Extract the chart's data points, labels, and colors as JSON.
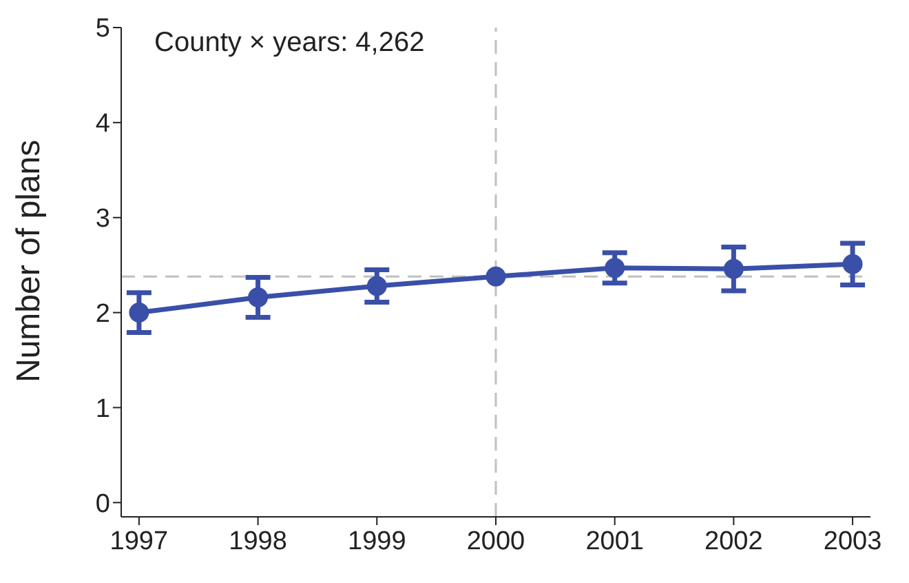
{
  "chart_data": {
    "type": "line",
    "ylabel": "Number of plans",
    "annotations": [
      "County × years: 4,262"
    ],
    "x": [
      1997,
      1998,
      1999,
      2000,
      2001,
      2002,
      2003
    ],
    "series": [
      {
        "color": "#3a4fa8",
        "values": [
          2.0,
          2.16,
          2.28,
          2.38,
          2.47,
          2.46,
          2.51
        ],
        "errors": [
          0.21,
          0.21,
          0.17,
          null,
          0.16,
          0.23,
          0.22
        ]
      }
    ],
    "xlim": [
      1996.85,
      2003.15
    ],
    "xticks": [
      1997,
      1998,
      1999,
      2000,
      2001,
      2002,
      2003
    ],
    "ylim": [
      -0.15,
      5
    ],
    "yticks": [
      0,
      1,
      2,
      3,
      4,
      5
    ],
    "ref_lines": [
      {
        "axis": "y",
        "value": 2.38,
        "color": "#c0c0c0",
        "line_style": "dashed"
      },
      {
        "axis": "x",
        "value": 2000,
        "color": "#c0c0c0",
        "line_style": "dashed"
      }
    ],
    "grid": false,
    "legend": false,
    "marker": "circle",
    "line_style": "solid"
  }
}
